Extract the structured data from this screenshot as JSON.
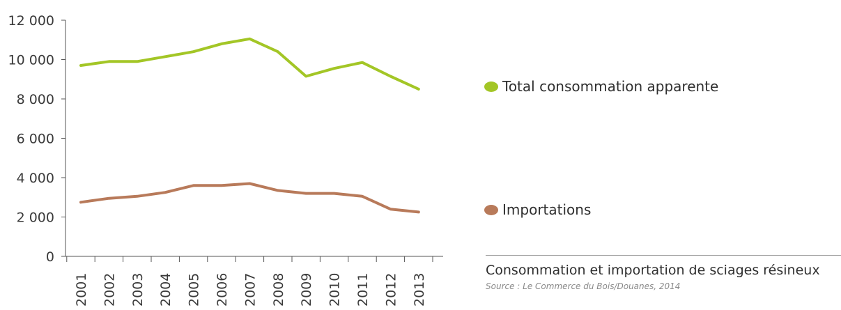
{
  "chart_data": {
    "type": "line",
    "x": [
      "2001",
      "2002",
      "2003",
      "2004",
      "2005",
      "2006",
      "2007",
      "2008",
      "2009",
      "2010",
      "2011",
      "2012",
      "2013"
    ],
    "ylim": [
      0,
      12000
    ],
    "yticks": [
      "0",
      "2 000",
      "4 000",
      "6 000",
      "8 000",
      "10 000",
      "12 000"
    ],
    "ytick_values": [
      0,
      2000,
      4000,
      6000,
      8000,
      10000,
      12000
    ],
    "grid": false,
    "legend_placement": "right",
    "series": [
      {
        "name": "Total consommation apparente",
        "color": "#a3c626",
        "values": [
          9700,
          9900,
          9900,
          10150,
          10400,
          10800,
          11050,
          10400,
          9150,
          9550,
          9850,
          9150,
          8500
        ]
      },
      {
        "name": "Importations",
        "color": "#b87a5a",
        "values": [
          2750,
          2950,
          3050,
          3250,
          3600,
          3600,
          3700,
          3350,
          3200,
          3200,
          3050,
          2400,
          2250
        ]
      }
    ]
  },
  "legend": {
    "total_label": "Total consommation apparente",
    "imports_label": "Importations"
  },
  "caption": {
    "title": "Consommation et importation de sciages résineux",
    "source": "Source : Le Commerce du Bois/Douanes, 2014"
  }
}
